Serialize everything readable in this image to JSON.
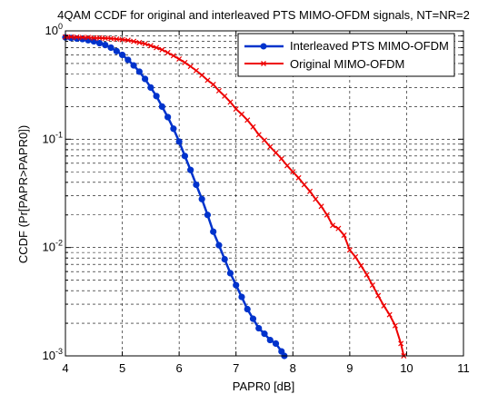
{
  "chart_data": {
    "type": "line",
    "title": "4QAM CCDF for original and interleaved PTS MIMO-OFDM signals, NT=NR=2",
    "xlabel": "PAPR0 [dB]",
    "ylabel": "CCDF (Pr[PAPR>PAPR0])",
    "xlim": [
      4,
      11
    ],
    "ylim": [
      0.001,
      1
    ],
    "yscale": "log",
    "grid": "dashed",
    "legend_position": "top-right",
    "x_ticks": [
      "4",
      "5",
      "6",
      "7",
      "8",
      "9",
      "10",
      "11"
    ],
    "y_ticks": [
      {
        "base": "10",
        "exp": "-3"
      },
      {
        "base": "10",
        "exp": "-2"
      },
      {
        "base": "10",
        "exp": "-1"
      },
      {
        "base": "10",
        "exp": "0"
      }
    ],
    "series": [
      {
        "name": "Interleaved PTS MIMO-OFDM",
        "color": "#0033cc",
        "marker": "star",
        "x": [
          4.0,
          4.1,
          4.2,
          4.3,
          4.4,
          4.5,
          4.6,
          4.7,
          4.8,
          4.9,
          5.0,
          5.1,
          5.2,
          5.3,
          5.4,
          5.5,
          5.6,
          5.7,
          5.8,
          5.9,
          6.0,
          6.1,
          6.2,
          6.3,
          6.4,
          6.5,
          6.6,
          6.7,
          6.8,
          6.9,
          7.0,
          7.1,
          7.2,
          7.3,
          7.4,
          7.5,
          7.6,
          7.7,
          7.8,
          7.85
        ],
        "y": [
          0.87,
          0.86,
          0.85,
          0.84,
          0.82,
          0.8,
          0.77,
          0.74,
          0.7,
          0.65,
          0.6,
          0.54,
          0.48,
          0.42,
          0.36,
          0.3,
          0.25,
          0.2,
          0.16,
          0.125,
          0.095,
          0.07,
          0.052,
          0.038,
          0.028,
          0.02,
          0.014,
          0.0105,
          0.0078,
          0.0058,
          0.0045,
          0.0035,
          0.0027,
          0.0022,
          0.0018,
          0.0016,
          0.0014,
          0.0013,
          0.0011,
          0.001
        ]
      },
      {
        "name": "Original MIMO-OFDM",
        "color": "#ee0000",
        "marker": "x",
        "x": [
          4.0,
          4.1,
          4.2,
          4.3,
          4.4,
          4.5,
          4.6,
          4.7,
          4.8,
          4.9,
          5.0,
          5.1,
          5.2,
          5.3,
          5.4,
          5.5,
          5.6,
          5.7,
          5.8,
          5.9,
          6.0,
          6.1,
          6.2,
          6.3,
          6.4,
          6.5,
          6.6,
          6.7,
          6.8,
          6.9,
          7.0,
          7.1,
          7.2,
          7.3,
          7.4,
          7.5,
          7.6,
          7.7,
          7.8,
          7.9,
          8.0,
          8.1,
          8.2,
          8.3,
          8.4,
          8.5,
          8.6,
          8.7,
          8.8,
          8.9,
          9.0,
          9.1,
          9.2,
          9.3,
          9.4,
          9.5,
          9.6,
          9.7,
          9.8,
          9.9,
          9.95
        ],
        "y": [
          0.88,
          0.88,
          0.875,
          0.87,
          0.87,
          0.86,
          0.86,
          0.855,
          0.85,
          0.84,
          0.83,
          0.82,
          0.8,
          0.78,
          0.76,
          0.73,
          0.7,
          0.67,
          0.63,
          0.59,
          0.55,
          0.51,
          0.47,
          0.43,
          0.39,
          0.35,
          0.32,
          0.28,
          0.25,
          0.22,
          0.19,
          0.17,
          0.15,
          0.13,
          0.11,
          0.098,
          0.085,
          0.075,
          0.066,
          0.057,
          0.05,
          0.044,
          0.038,
          0.033,
          0.028,
          0.024,
          0.02,
          0.016,
          0.015,
          0.013,
          0.0095,
          0.0082,
          0.0068,
          0.0056,
          0.0045,
          0.0036,
          0.0029,
          0.0024,
          0.0019,
          0.0013,
          0.001
        ]
      }
    ]
  }
}
